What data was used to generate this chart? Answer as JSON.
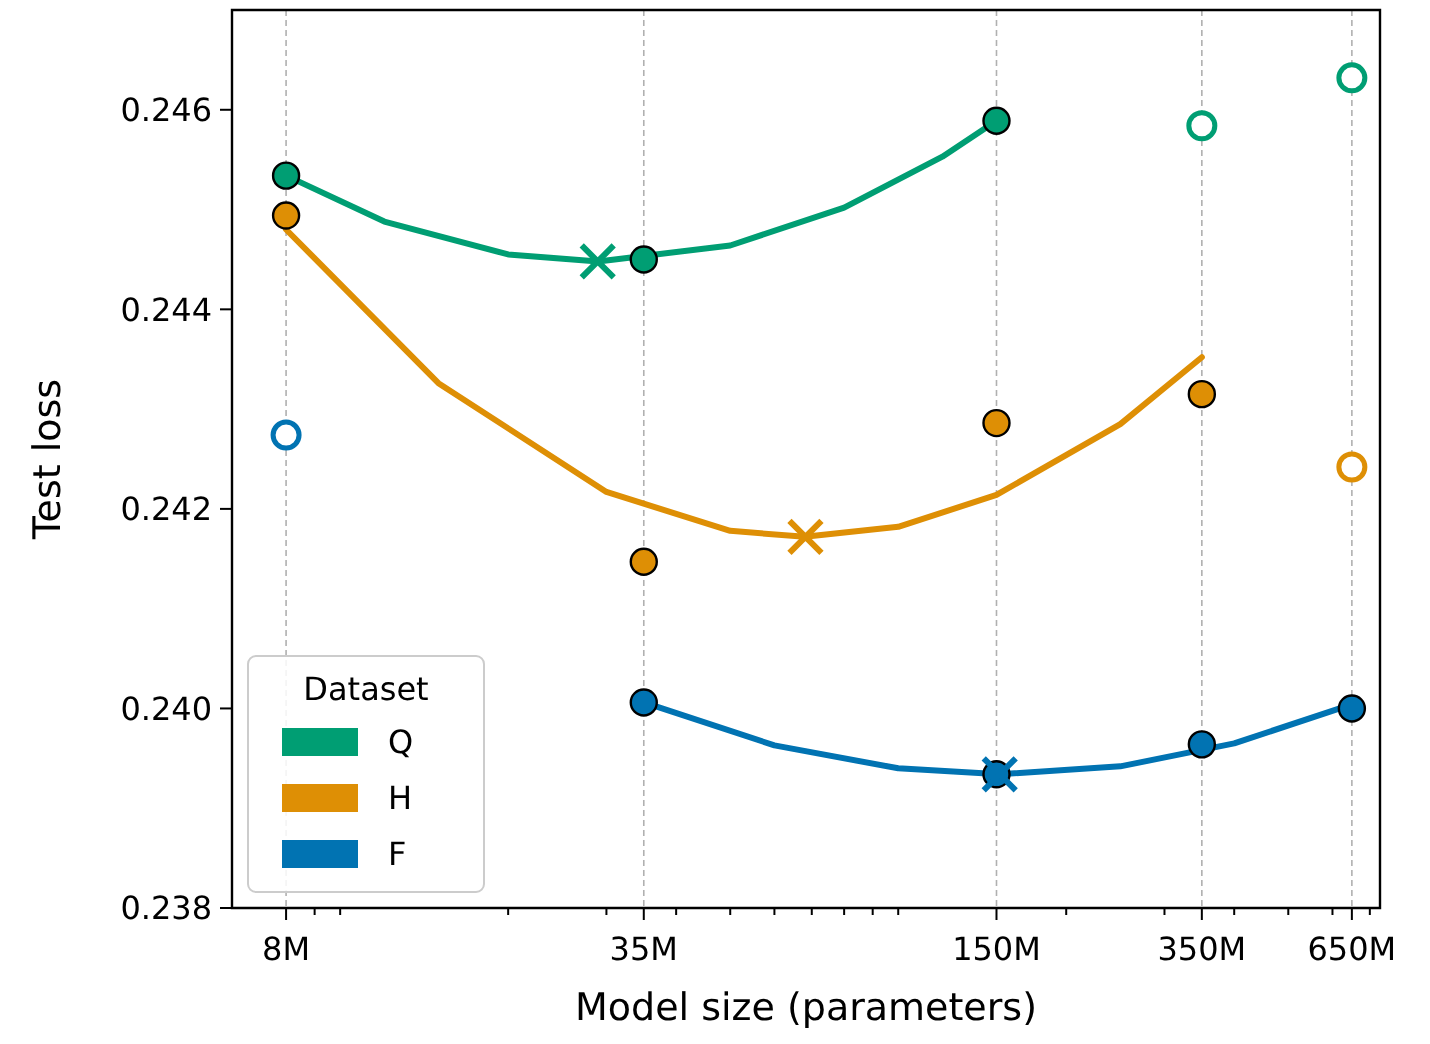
{
  "chart_data": {
    "type": "scatter",
    "xlabel": "Model size (parameters)",
    "ylabel": "Test loss",
    "legend_title": "Dataset",
    "legend": "bottom left",
    "log": "x",
    "grid": "x",
    "xlim": [
      6400000,
      730000000
    ],
    "ylim": [
      0.238,
      0.247
    ],
    "xticks": [
      {
        "value": 8000000,
        "label": "8M"
      },
      {
        "value": 9000000,
        "label": null
      },
      {
        "value": 10000000,
        "label": null
      },
      {
        "value": 20000000,
        "label": null
      },
      {
        "value": 30000000,
        "label": null
      },
      {
        "value": 35000000,
        "label": "35M"
      },
      {
        "value": 40000000,
        "label": null
      },
      {
        "value": 50000000,
        "label": null
      },
      {
        "value": 60000000,
        "label": null
      },
      {
        "value": 70000000,
        "label": null
      },
      {
        "value": 80000000,
        "label": null
      },
      {
        "value": 90000000,
        "label": null
      },
      {
        "value": 100000000,
        "label": null
      },
      {
        "value": 150000000,
        "label": "150M"
      },
      {
        "value": 200000000,
        "label": null
      },
      {
        "value": 300000000,
        "label": null
      },
      {
        "value": 350000000,
        "label": "350M"
      },
      {
        "value": 400000000,
        "label": null
      },
      {
        "value": 500000000,
        "label": null
      },
      {
        "value": 600000000,
        "label": null
      },
      {
        "value": 650000000,
        "label": "650M"
      },
      {
        "value": 700000000,
        "label": null
      }
    ],
    "yticks": [
      {
        "value": 0.238,
        "label": "0.238"
      },
      {
        "value": 0.24,
        "label": "0.240"
      },
      {
        "value": 0.242,
        "label": "0.242"
      },
      {
        "value": 0.244,
        "label": "0.244"
      },
      {
        "value": 0.246,
        "label": "0.246"
      }
    ],
    "series": [
      {
        "name": "Q",
        "type": "line",
        "color": "#009e73",
        "marker": "none",
        "x": [
          8000000,
          12000000,
          20000000,
          29000000,
          50000000,
          80000000,
          120000000,
          150000000
        ],
        "values": [
          0.24534,
          0.24488,
          0.24455,
          0.24448,
          0.24464,
          0.24502,
          0.24553,
          0.24589
        ]
      },
      {
        "name": "H",
        "type": "line",
        "color": "#de8f05",
        "marker": "none",
        "x": [
          8000000,
          15000000,
          30000000,
          50000000,
          68000000,
          100000000,
          150000000,
          250000000,
          350000000
        ],
        "values": [
          0.2448,
          0.24326,
          0.24217,
          0.24178,
          0.24172,
          0.24182,
          0.24214,
          0.24285,
          0.24352
        ]
      },
      {
        "name": "F",
        "type": "line",
        "color": "#0173b2",
        "marker": "none",
        "x": [
          35000000,
          60000000,
          100000000,
          152000000,
          250000000,
          400000000,
          650000000
        ],
        "values": [
          0.24006,
          0.23963,
          0.2394,
          0.23934,
          0.23942,
          0.23965,
          0.24004
        ]
      },
      {
        "color": "#009e73",
        "marker": "circle",
        "x": [
          8000000,
          35000000,
          150000000
        ],
        "values": [
          0.24534,
          0.2445,
          0.24589
        ]
      },
      {
        "color": "#009e73",
        "colors": [
          "#ffffff",
          "#ffffff"
        ],
        "marker": "circle",
        "x": [
          350000000,
          650000000
        ],
        "values": [
          0.24584,
          0.24632
        ]
      },
      {
        "color": "#de8f05",
        "marker": "circle",
        "x": [
          8000000,
          35000000,
          150000000,
          350000000
        ],
        "values": [
          0.24494,
          0.24147,
          0.24286,
          0.24315
        ]
      },
      {
        "color": "#de8f05",
        "colors": [
          "#ffffff"
        ],
        "marker": "circle",
        "x": [
          650000000
        ],
        "values": [
          0.24242
        ]
      },
      {
        "color": "#0173b2",
        "colors": [
          "#ffffff"
        ],
        "marker": "circle",
        "x": [
          8000000
        ],
        "values": [
          0.24274
        ]
      },
      {
        "color": "#0173b2",
        "marker": "circle",
        "x": [
          35000000,
          150000000,
          350000000,
          650000000
        ],
        "values": [
          0.24006,
          0.23934,
          0.23964,
          0.24
        ]
      },
      {
        "color": "#009e73",
        "marker": "cross",
        "x": [
          28940000
        ],
        "values": [
          0.24448
        ]
      },
      {
        "color": "#de8f05",
        "marker": "cross",
        "x": [
          68200000
        ],
        "values": [
          0.24172
        ]
      },
      {
        "color": "#0173b2",
        "marker": "cross",
        "x": [
          152000000
        ],
        "values": [
          0.23934
        ]
      }
    ]
  }
}
